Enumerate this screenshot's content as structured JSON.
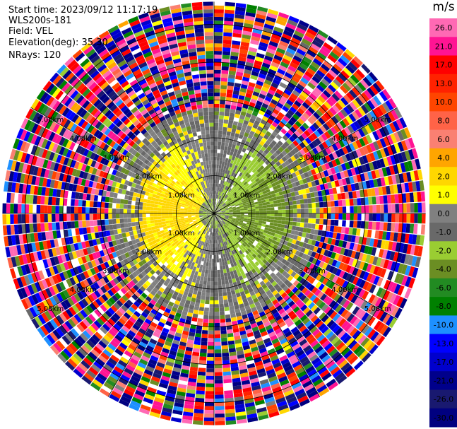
{
  "header": {
    "start_time": "Start time: 2023/09/12 11:17:19",
    "instrument": "WLS200s-181",
    "field": "Field: VEL",
    "elevation": "Elevation(deg): 35.30",
    "nrays": "NRays: 120"
  },
  "chart_data": {
    "type": "heatmap",
    "projection": "polar-ppi",
    "field": "VEL",
    "units": "m/s",
    "n_rays": 120,
    "range_ring_labels": [
      "1.00km",
      "2.00km",
      "3.00km",
      "4.00km",
      "5.00km"
    ],
    "range_rings_km": [
      1,
      2,
      3,
      4,
      5
    ],
    "max_range_km": 5.6,
    "colorbar": {
      "title": "m/s",
      "vmin": -30,
      "vmax": 30,
      "tick_labels": [
        "26.0",
        "21.0",
        "17.0",
        "13.0",
        "10.0",
        "8.0",
        "6.0",
        "4.0",
        "2.0",
        "1.0",
        "0.0",
        "-1.0",
        "-2.0",
        "-4.0",
        "-6.0",
        "-8.0",
        "-10.0",
        "-13.0",
        "-17.0",
        "-21.0",
        "-26.0",
        "-30.0"
      ],
      "bins": [
        {
          "from": 26,
          "to": 30,
          "color": "#ff69b4"
        },
        {
          "from": 21,
          "to": 26,
          "color": "#ff1493"
        },
        {
          "from": 17,
          "to": 21,
          "color": "#ff0000"
        },
        {
          "from": 13,
          "to": 17,
          "color": "#ff2200"
        },
        {
          "from": 10,
          "to": 13,
          "color": "#ff4500"
        },
        {
          "from": 8,
          "to": 10,
          "color": "#ff6347"
        },
        {
          "from": 6,
          "to": 8,
          "color": "#fa8072"
        },
        {
          "from": 4,
          "to": 6,
          "color": "#ffa500"
        },
        {
          "from": 2,
          "to": 4,
          "color": "#ffd700"
        },
        {
          "from": 1,
          "to": 2,
          "color": "#ffff00"
        },
        {
          "from": 0,
          "to": 1,
          "color": "#808080"
        },
        {
          "from": -1,
          "to": 0,
          "color": "#696969"
        },
        {
          "from": -2,
          "to": -1,
          "color": "#9acd32"
        },
        {
          "from": -4,
          "to": -2,
          "color": "#6b8e23"
        },
        {
          "from": -6,
          "to": -4,
          "color": "#228b22"
        },
        {
          "from": -8,
          "to": -6,
          "color": "#008000"
        },
        {
          "from": -10,
          "to": -8,
          "color": "#1e90ff"
        },
        {
          "from": -13,
          "to": -10,
          "color": "#0000ff"
        },
        {
          "from": -17,
          "to": -13,
          "color": "#0000cd"
        },
        {
          "from": -21,
          "to": -17,
          "color": "#00008b"
        },
        {
          "from": -26,
          "to": -21,
          "color": "#191970"
        },
        {
          "from": -30,
          "to": -26,
          "color": "#000080"
        }
      ]
    }
  }
}
